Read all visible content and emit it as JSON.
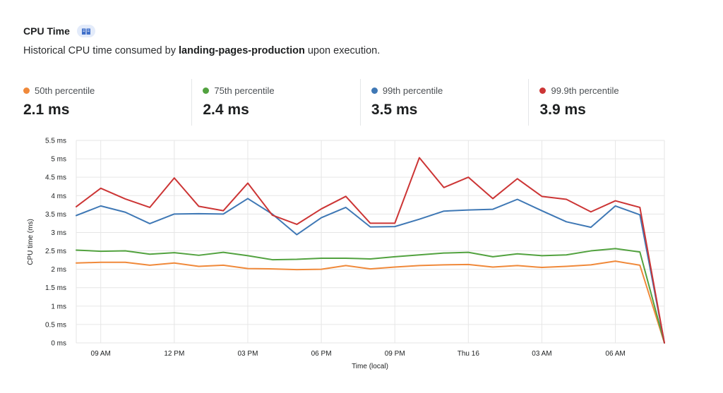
{
  "header": {
    "title": "CPU Time",
    "subtitle_prefix": "Historical CPU time consumed by ",
    "worker_name": "landing-pages-production",
    "subtitle_suffix": " upon execution.",
    "docs_icon": "book-icon"
  },
  "stats": [
    {
      "label": "50th percentile",
      "value": "2.1 ms",
      "color": "#f0893a"
    },
    {
      "label": "75th percentile",
      "value": "2.4 ms",
      "color": "#52a23f"
    },
    {
      "label": "99th percentile",
      "value": "3.5 ms",
      "color": "#3f78b5"
    },
    {
      "label": "99.9th percentile",
      "value": "3.9 ms",
      "color": "#cc3535"
    }
  ],
  "chart_data": {
    "type": "line",
    "xlabel": "Time (local)",
    "ylabel": "CPU time (ms)",
    "ylim": [
      0,
      5.5
    ],
    "y_ticks": [
      {
        "value": 0,
        "label": "0 ms"
      },
      {
        "value": 0.5,
        "label": "0.5 ms"
      },
      {
        "value": 1,
        "label": "1 ms"
      },
      {
        "value": 1.5,
        "label": "1.5 ms"
      },
      {
        "value": 2,
        "label": "2 ms"
      },
      {
        "value": 2.5,
        "label": "2.5 ms"
      },
      {
        "value": 3,
        "label": "3 ms"
      },
      {
        "value": 3.5,
        "label": "3.5 ms"
      },
      {
        "value": 4,
        "label": "4 ms"
      },
      {
        "value": 4.5,
        "label": "4.5 ms"
      },
      {
        "value": 5,
        "label": "5 ms"
      },
      {
        "value": 5.5,
        "label": "5.5 ms"
      }
    ],
    "xlim": [
      0,
      24
    ],
    "x": [
      0,
      1,
      2,
      3,
      4,
      5,
      6,
      7,
      8,
      9,
      10,
      11,
      12,
      13,
      14,
      15,
      16,
      17,
      18,
      19,
      20,
      21,
      22,
      23,
      24
    ],
    "x_ticks": [
      {
        "value": 1,
        "label": "09 AM"
      },
      {
        "value": 4,
        "label": "12 PM"
      },
      {
        "value": 7,
        "label": "03 PM"
      },
      {
        "value": 10,
        "label": "06 PM"
      },
      {
        "value": 13,
        "label": "09 PM"
      },
      {
        "value": 16,
        "label": "Thu 16"
      },
      {
        "value": 19,
        "label": "03 AM"
      },
      {
        "value": 22,
        "label": "06 AM"
      }
    ],
    "grid": true,
    "legend": "top",
    "series": [
      {
        "name": "50th percentile",
        "color": "#f0893a",
        "values": [
          2.17,
          2.19,
          2.19,
          2.11,
          2.17,
          2.08,
          2.11,
          2.02,
          2.01,
          1.99,
          2.0,
          2.1,
          2.01,
          2.06,
          2.1,
          2.12,
          2.13,
          2.06,
          2.1,
          2.05,
          2.08,
          2.12,
          2.22,
          2.11,
          0
        ]
      },
      {
        "name": "75th percentile",
        "color": "#52a23f",
        "values": [
          2.52,
          2.49,
          2.5,
          2.41,
          2.45,
          2.38,
          2.46,
          2.37,
          2.26,
          2.27,
          2.3,
          2.3,
          2.28,
          2.34,
          2.39,
          2.44,
          2.46,
          2.34,
          2.42,
          2.37,
          2.39,
          2.5,
          2.56,
          2.47,
          0
        ]
      },
      {
        "name": "99th percentile",
        "color": "#3f78b5",
        "values": [
          3.46,
          3.72,
          3.55,
          3.24,
          3.5,
          3.51,
          3.5,
          3.92,
          3.5,
          2.94,
          3.4,
          3.68,
          3.15,
          3.16,
          3.36,
          3.58,
          3.61,
          3.63,
          3.9,
          3.59,
          3.29,
          3.14,
          3.72,
          3.48,
          0
        ]
      },
      {
        "name": "99.9th percentile",
        "color": "#cc3535",
        "values": [
          3.7,
          4.2,
          3.91,
          3.68,
          4.48,
          3.71,
          3.59,
          4.34,
          3.47,
          3.22,
          3.64,
          3.98,
          3.25,
          3.25,
          5.03,
          4.22,
          4.5,
          3.92,
          4.46,
          3.98,
          3.9,
          3.56,
          3.86,
          3.68,
          0
        ]
      }
    ]
  }
}
